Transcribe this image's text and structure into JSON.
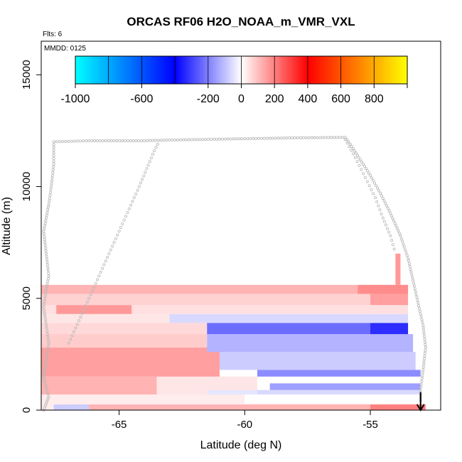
{
  "chart_data": {
    "type": "heatmap",
    "title": "ORCAS RF06 H2O_NOAA_m_VMR_VXL",
    "subtitle_flights": "Flts: 6",
    "subtitle_date": "MMDD: 0125",
    "xlabel": "Latitude (deg N)",
    "ylabel": "Altitude (m)",
    "xlim": [
      -68.1,
      -52.2
    ],
    "ylim": [
      0,
      16500
    ],
    "x_ticks": [
      -65,
      -60,
      -55
    ],
    "x_tick_labels": [
      "-65",
      "-60",
      "-55"
    ],
    "y_ticks": [
      0,
      5000,
      10000,
      15000
    ],
    "y_tick_labels": [
      "0",
      "5000",
      "10000",
      "15000"
    ],
    "colorbar": {
      "range": [
        -1000,
        1000
      ],
      "tick_values": [
        -1000,
        -600,
        -200,
        0,
        200,
        400,
        600,
        800
      ],
      "tick_labels": [
        "-1000",
        "-600",
        "-200",
        "0",
        "200",
        "400",
        "600",
        "800"
      ],
      "colors": {
        "cyan": "#00ffff",
        "blue": "#0000ff",
        "white": "#ffffff",
        "red": "#ff0000",
        "yellow": "#ffff00"
      }
    },
    "cells": [
      {
        "x0": -68.1,
        "x1": -52.8,
        "y0": 0,
        "y1": 300,
        "v": 30
      },
      {
        "x0": -67.0,
        "x1": -53.0,
        "y0": 0,
        "y1": 250,
        "v": 120
      },
      {
        "x0": -55.0,
        "x1": -52.8,
        "y0": 0,
        "y1": 250,
        "v": 200
      },
      {
        "x0": -67.6,
        "x1": -66.2,
        "y0": 0,
        "y1": 250,
        "v": -80
      },
      {
        "x0": -68.1,
        "x1": -60.0,
        "y0": 300,
        "y1": 700,
        "v": 30
      },
      {
        "x0": -60.0,
        "x1": -53.0,
        "y0": 300,
        "y1": 700,
        "v": 0
      },
      {
        "x0": -68.1,
        "x1": -63.5,
        "y0": 700,
        "y1": 1500,
        "v": 120
      },
      {
        "x0": -63.5,
        "x1": -59.5,
        "y0": 700,
        "y1": 1500,
        "v": 40
      },
      {
        "x0": -61.5,
        "x1": -59.5,
        "y0": 700,
        "y1": 900,
        "v": -40
      },
      {
        "x0": -59.5,
        "x1": -53.0,
        "y0": 700,
        "y1": 900,
        "v": -60
      },
      {
        "x0": -59.0,
        "x1": -53.0,
        "y0": 900,
        "y1": 1200,
        "v": -150
      },
      {
        "x0": -59.0,
        "x1": -53.0,
        "y0": 1200,
        "y1": 1500,
        "v": 0
      },
      {
        "x0": -59.5,
        "x1": -53.0,
        "y0": 1500,
        "y1": 1800,
        "v": -180
      },
      {
        "x0": -68.1,
        "x1": -61.0,
        "y0": 1500,
        "y1": 2800,
        "v": 150
      },
      {
        "x0": -61.0,
        "x1": -53.2,
        "y0": 1800,
        "y1": 2600,
        "v": -80
      },
      {
        "x0": -68.1,
        "x1": -61.5,
        "y0": 2800,
        "y1": 3400,
        "v": 80
      },
      {
        "x0": -61.5,
        "x1": -53.3,
        "y0": 2600,
        "y1": 3400,
        "v": -120
      },
      {
        "x0": -68.1,
        "x1": -61.5,
        "y0": 3400,
        "y1": 3900,
        "v": 60
      },
      {
        "x0": -61.5,
        "x1": -53.5,
        "y0": 3400,
        "y1": 3900,
        "v": -230
      },
      {
        "x0": -55.0,
        "x1": -53.5,
        "y0": 3400,
        "y1": 3900,
        "v": -330
      },
      {
        "x0": -68.1,
        "x1": -63.0,
        "y0": 3900,
        "y1": 4300,
        "v": 40
      },
      {
        "x0": -63.0,
        "x1": -53.5,
        "y0": 3900,
        "y1": 4300,
        "v": -60
      },
      {
        "x0": -68.1,
        "x1": -53.5,
        "y0": 4300,
        "y1": 4700,
        "v": 50
      },
      {
        "x0": -67.5,
        "x1": -64.5,
        "y0": 4300,
        "y1": 4700,
        "v": 160
      },
      {
        "x0": -68.1,
        "x1": -53.5,
        "y0": 4700,
        "y1": 5200,
        "v": 70
      },
      {
        "x0": -55.0,
        "x1": -53.5,
        "y0": 4700,
        "y1": 5200,
        "v": 150
      },
      {
        "x0": -68.1,
        "x1": -53.5,
        "y0": 5200,
        "y1": 5600,
        "v": 120
      },
      {
        "x0": -55.5,
        "x1": -53.5,
        "y0": 5200,
        "y1": 5600,
        "v": 180
      },
      {
        "x0": -54.0,
        "x1": -53.8,
        "y0": 5600,
        "y1": 7000,
        "v": 160
      }
    ],
    "flight_track": [
      [
        -68.0,
        0
      ],
      [
        -67.9,
        300
      ],
      [
        -67.8,
        600
      ],
      [
        -67.9,
        1000
      ],
      [
        -68.0,
        1500
      ],
      [
        -67.9,
        2200
      ],
      [
        -67.8,
        3000
      ],
      [
        -67.9,
        3800
      ],
      [
        -68.0,
        4600
      ],
      [
        -67.9,
        5400
      ],
      [
        -67.8,
        6000
      ],
      [
        -67.9,
        7000
      ],
      [
        -68.0,
        8000
      ],
      [
        -67.9,
        8600
      ],
      [
        -67.8,
        9200
      ],
      [
        -67.7,
        10000
      ],
      [
        -67.6,
        11000
      ],
      [
        -67.6,
        12000
      ],
      [
        -66.2,
        12050
      ],
      [
        -65.2,
        12050
      ],
      [
        -64.0,
        12050
      ],
      [
        -63.0,
        12080
      ],
      [
        -62.0,
        12100
      ],
      [
        -61.0,
        12120
      ],
      [
        -60.0,
        12140
      ],
      [
        -59.0,
        12160
      ],
      [
        -58.0,
        12180
      ],
      [
        -57.0,
        12190
      ],
      [
        -56.0,
        12200
      ],
      [
        -55.8,
        11900
      ],
      [
        -55.4,
        11200
      ],
      [
        -55.0,
        10500
      ],
      [
        -54.6,
        9700
      ],
      [
        -54.2,
        8800
      ],
      [
        -53.8,
        7800
      ],
      [
        -53.5,
        6800
      ],
      [
        -53.3,
        5800
      ],
      [
        -53.1,
        4800
      ],
      [
        -52.9,
        3800
      ],
      [
        -52.8,
        2800
      ],
      [
        -52.9,
        1800
      ],
      [
        -53.0,
        900
      ],
      [
        -53.0,
        300
      ]
    ],
    "climb_track": [
      [
        -67.0,
        3000
      ],
      [
        -66.6,
        4000
      ],
      [
        -66.2,
        5000
      ],
      [
        -65.8,
        6000
      ],
      [
        -65.4,
        7000
      ],
      [
        -65.0,
        8000
      ],
      [
        -64.6,
        9000
      ],
      [
        -64.2,
        10000
      ],
      [
        -63.9,
        10800
      ],
      [
        -63.6,
        11600
      ],
      [
        -63.4,
        12050
      ]
    ],
    "descent_track": [
      [
        -56.0,
        12100
      ],
      [
        -55.6,
        11300
      ],
      [
        -55.2,
        10400
      ],
      [
        -54.8,
        9500
      ],
      [
        -54.5,
        8600
      ],
      [
        -54.2,
        7800
      ],
      [
        -54.0,
        7000
      ]
    ],
    "end_arrow": {
      "x": -53.0,
      "y_from": 800,
      "y_to": 0
    }
  }
}
